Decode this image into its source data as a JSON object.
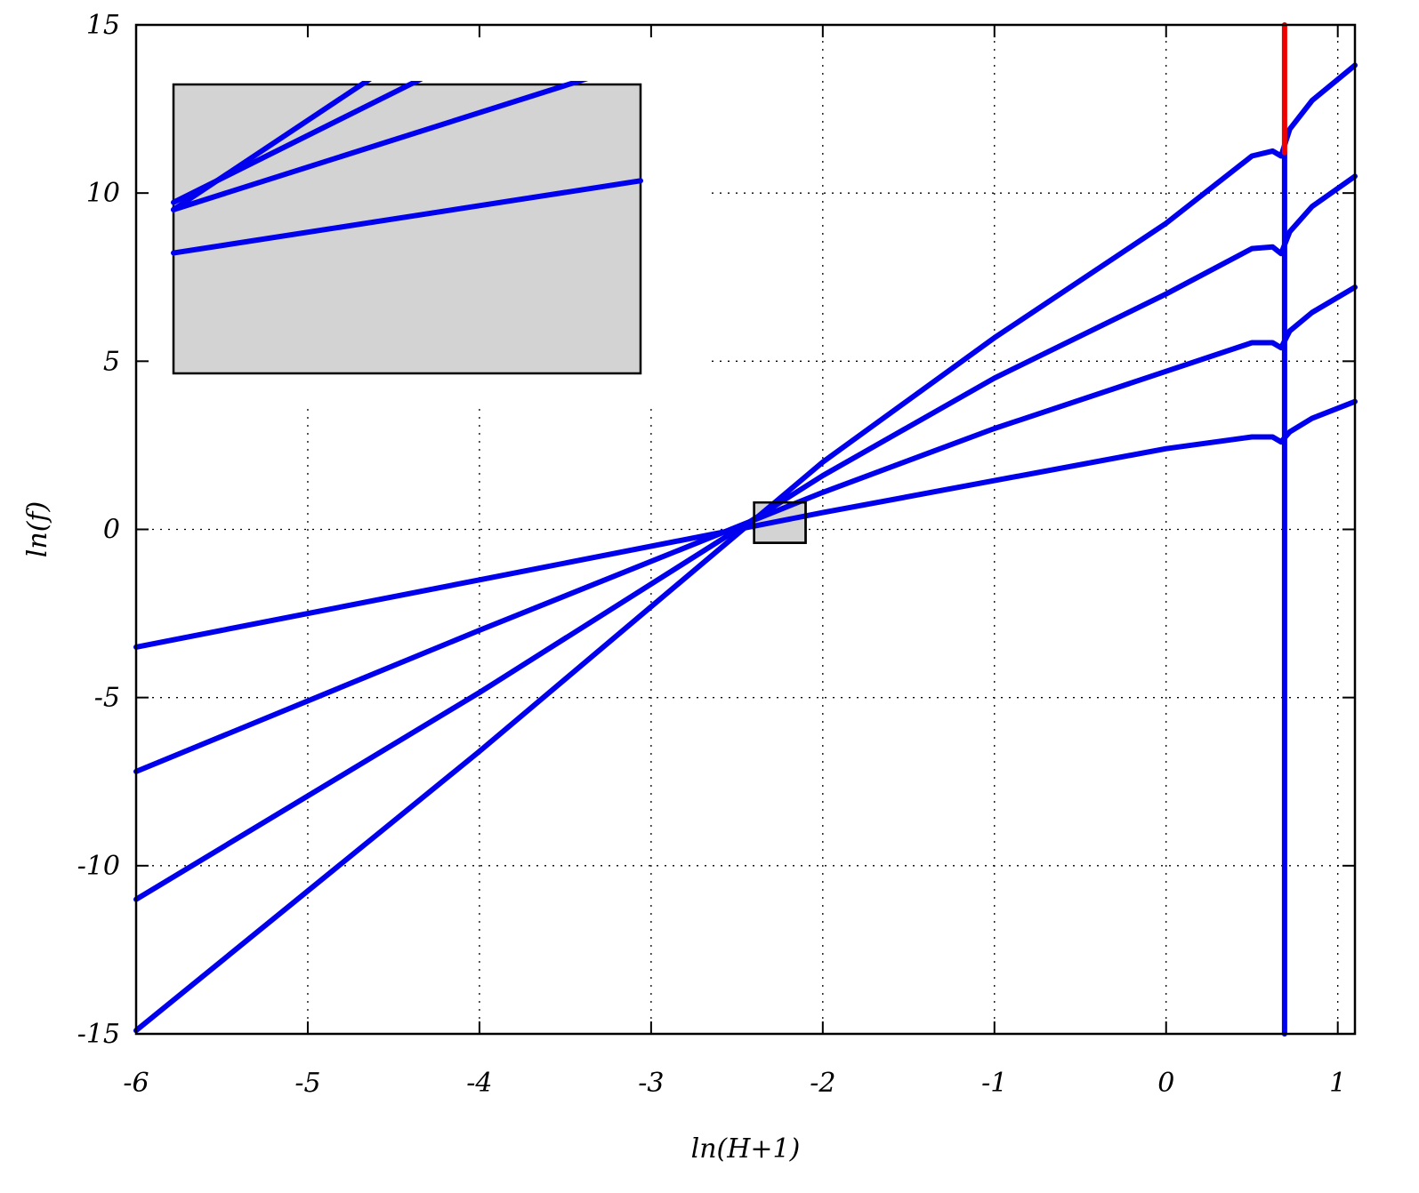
{
  "chart_data": {
    "type": "line",
    "title": "",
    "xlabel": "ln(H+1)",
    "ylabel": "ln(f)",
    "xlim": [
      -6,
      1.1
    ],
    "ylim": [
      -15,
      15
    ],
    "xticks": [
      -6,
      -5,
      -4,
      -3,
      -2,
      -1,
      0,
      1
    ],
    "yticks": [
      -15,
      -10,
      -5,
      0,
      5,
      10,
      15
    ],
    "grid": true,
    "legend": "none",
    "colors": {
      "series": "#0000ee",
      "vertical_line": "#ee0000",
      "box_fill": "#d3d3d3"
    },
    "series": [
      {
        "values": [
          [
            -6,
            -3.5
          ],
          [
            -4,
            -1.5
          ],
          [
            -2,
            0.5
          ],
          [
            -1,
            1.45
          ],
          [
            0,
            2.4
          ],
          [
            0.5,
            2.75
          ],
          [
            0.62,
            2.75
          ],
          [
            0.67,
            2.6
          ],
          [
            0.72,
            2.9
          ],
          [
            0.85,
            3.3
          ],
          [
            1.1,
            3.8
          ]
        ]
      },
      {
        "values": [
          [
            -6,
            -7.2
          ],
          [
            -4,
            -3.0
          ],
          [
            -2,
            1.1
          ],
          [
            -1,
            3.0
          ],
          [
            0,
            4.7
          ],
          [
            0.5,
            5.55
          ],
          [
            0.62,
            5.55
          ],
          [
            0.67,
            5.4
          ],
          [
            0.72,
            5.9
          ],
          [
            0.85,
            6.45
          ],
          [
            1.1,
            7.2
          ]
        ]
      },
      {
        "values": [
          [
            -6,
            -11.0
          ],
          [
            -4,
            -4.85
          ],
          [
            -2,
            1.6
          ],
          [
            -1,
            4.5
          ],
          [
            0,
            7.0
          ],
          [
            0.5,
            8.35
          ],
          [
            0.62,
            8.4
          ],
          [
            0.67,
            8.2
          ],
          [
            0.72,
            8.85
          ],
          [
            0.85,
            9.6
          ],
          [
            1.1,
            10.5
          ]
        ]
      },
      {
        "values": [
          [
            -6,
            -14.9
          ],
          [
            -4,
            -6.6
          ],
          [
            -2,
            2.0
          ],
          [
            -1,
            5.7
          ],
          [
            0,
            9.1
          ],
          [
            0.5,
            11.1
          ],
          [
            0.62,
            11.25
          ],
          [
            0.67,
            11.1
          ],
          [
            0.72,
            11.9
          ],
          [
            0.85,
            12.75
          ],
          [
            1.1,
            13.8
          ]
        ]
      }
    ],
    "vertical_line": {
      "x": 0.69,
      "y_blue": [
        -15,
        11.2
      ],
      "y_red": [
        11.2,
        15
      ]
    },
    "zoom_box": {
      "x": [
        -2.4,
        -2.1
      ],
      "y": [
        -0.4,
        0.8
      ]
    }
  }
}
